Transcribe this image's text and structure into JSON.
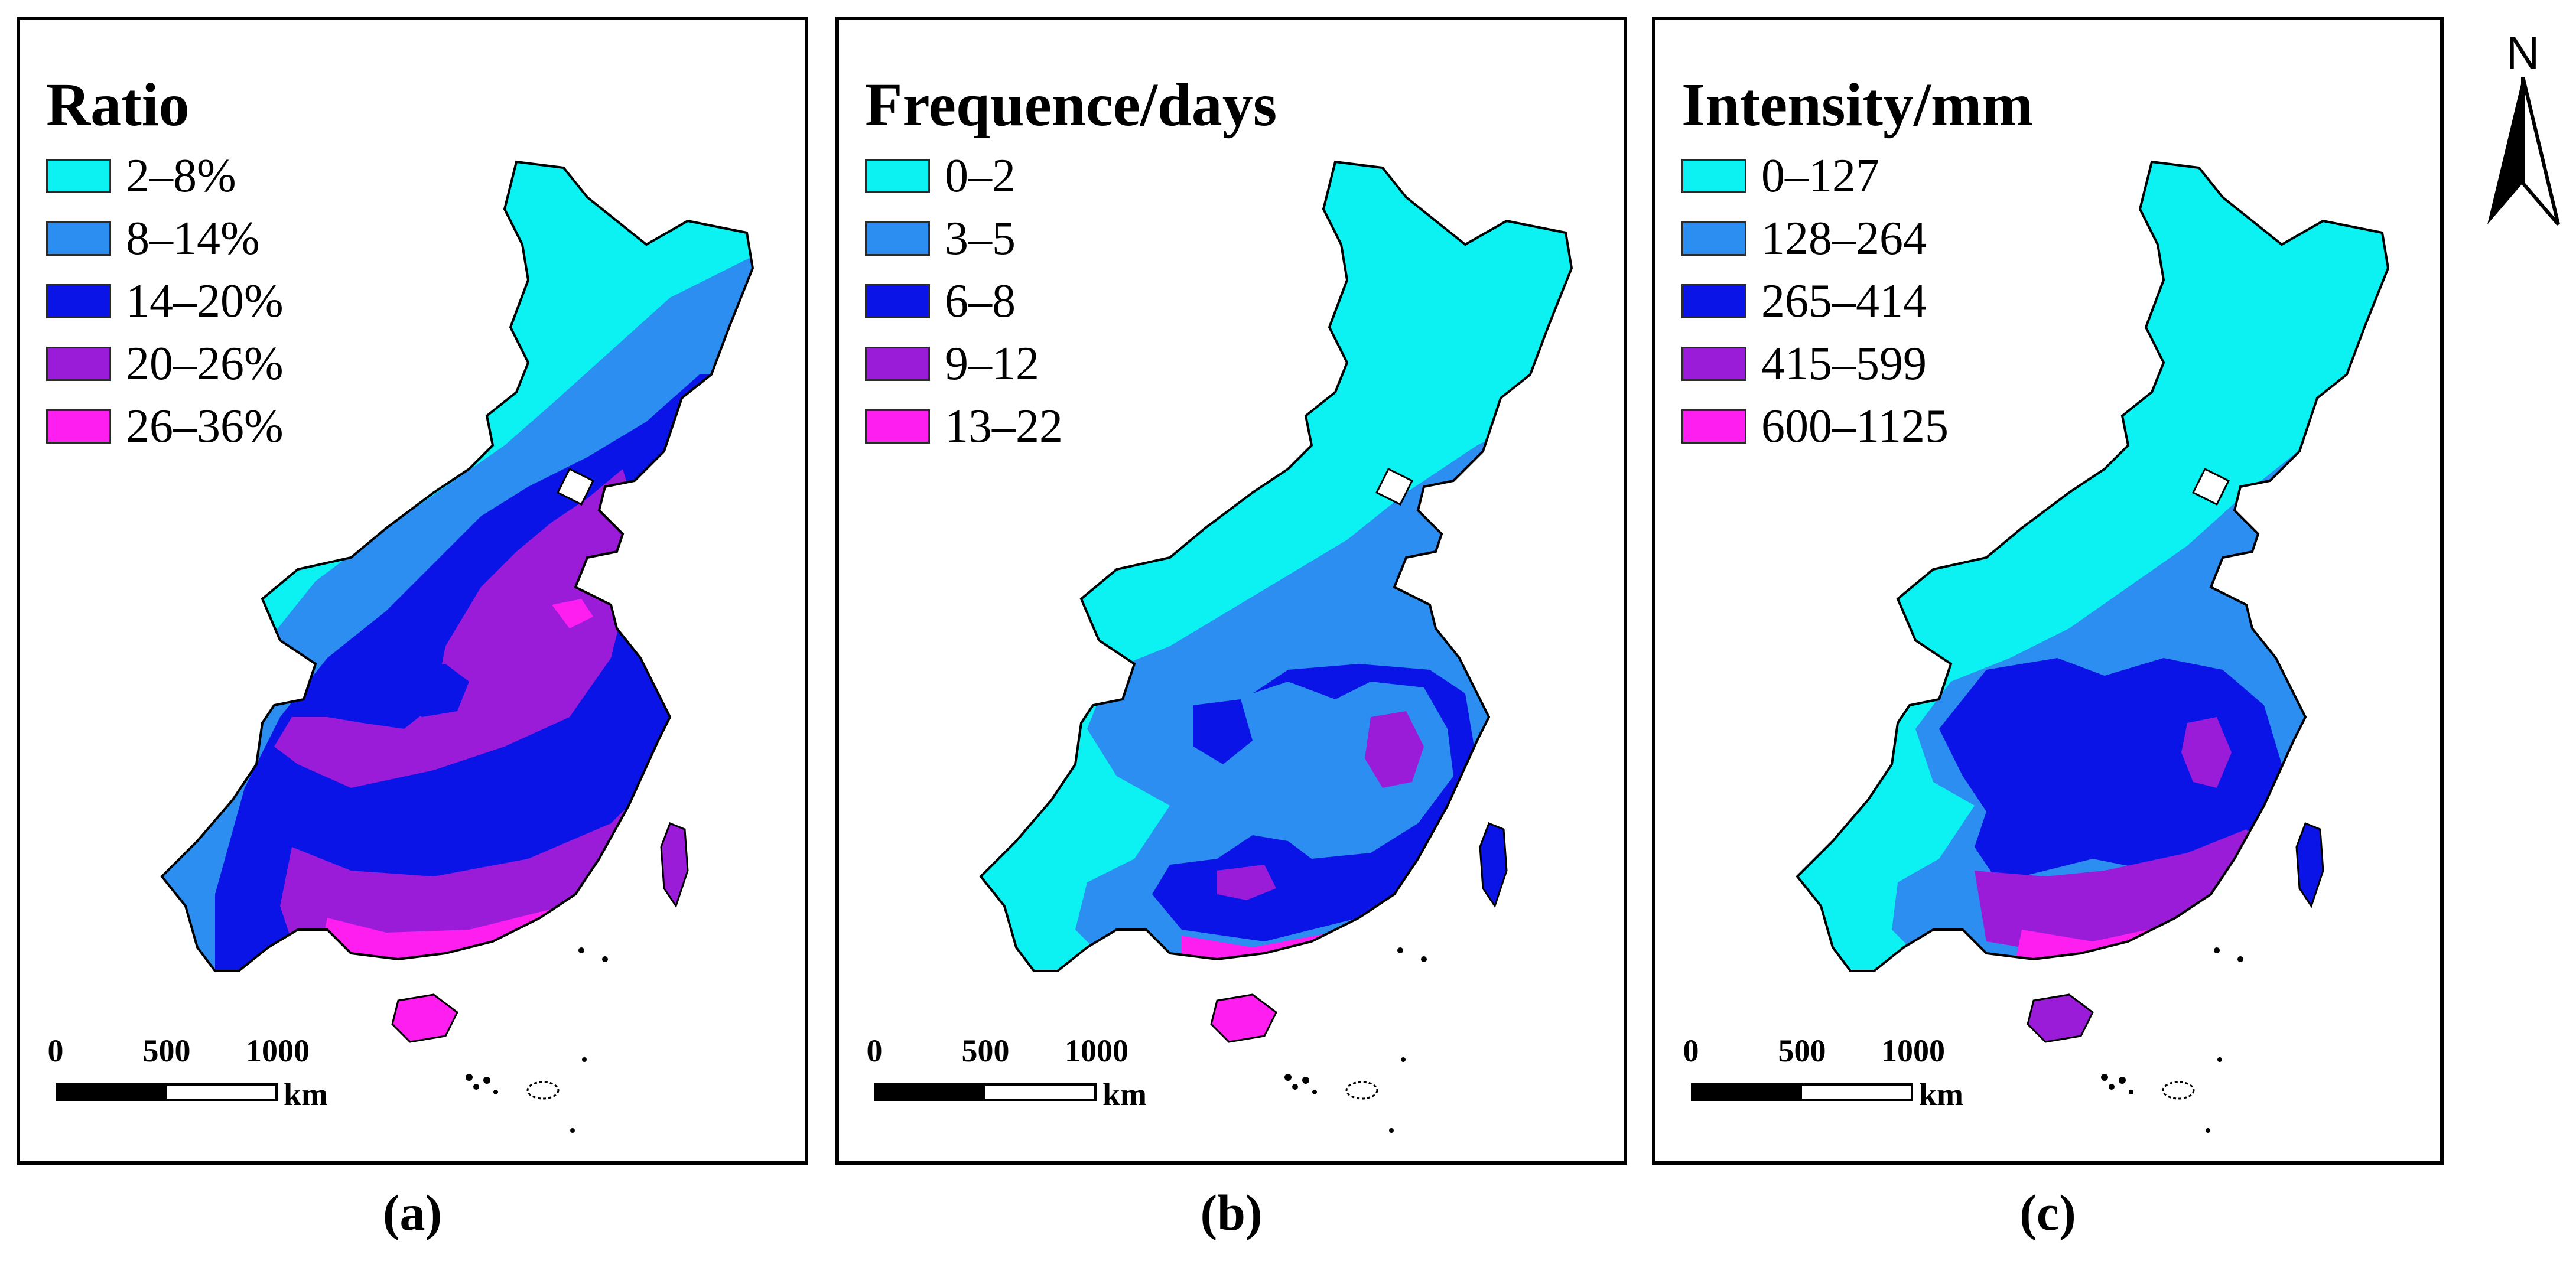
{
  "north_arrow": {
    "label": "N"
  },
  "scale_bar": {
    "ticks": [
      "0",
      "500",
      "1000"
    ],
    "unit": "km"
  },
  "colors": {
    "land_fill": "#ffffff",
    "classes": [
      "#0cf2f2",
      "#2c8ef0",
      "#0a14e6",
      "#9a1cd8",
      "#ff1ef0"
    ]
  },
  "panels": [
    {
      "caption": "(a)",
      "legend_title": "Ratio",
      "legend": [
        {
          "label": "2–8%",
          "color": "#0cf2f2"
        },
        {
          "label": "8–14%",
          "color": "#2c8ef0"
        },
        {
          "label": "14–20%",
          "color": "#0a14e6"
        },
        {
          "label": "20–26%",
          "color": "#9a1cd8"
        },
        {
          "label": "26–36%",
          "color": "#ff1ef0"
        }
      ]
    },
    {
      "caption": "(b)",
      "legend_title": "Frequence/days",
      "legend": [
        {
          "label": "0–2",
          "color": "#0cf2f2"
        },
        {
          "label": "3–5",
          "color": "#2c8ef0"
        },
        {
          "label": "6–8",
          "color": "#0a14e6"
        },
        {
          "label": "9–12",
          "color": "#9a1cd8"
        },
        {
          "label": "13–22",
          "color": "#ff1ef0"
        }
      ]
    },
    {
      "caption": "(c)",
      "legend_title": "Intensity/mm",
      "legend": [
        {
          "label": "0–127",
          "color": "#0cf2f2"
        },
        {
          "label": "128–264",
          "color": "#2c8ef0"
        },
        {
          "label": "265–414",
          "color": "#0a14e6"
        },
        {
          "label": "415–599",
          "color": "#9a1cd8"
        },
        {
          "label": "600–1125",
          "color": "#ff1ef0"
        }
      ]
    }
  ]
}
